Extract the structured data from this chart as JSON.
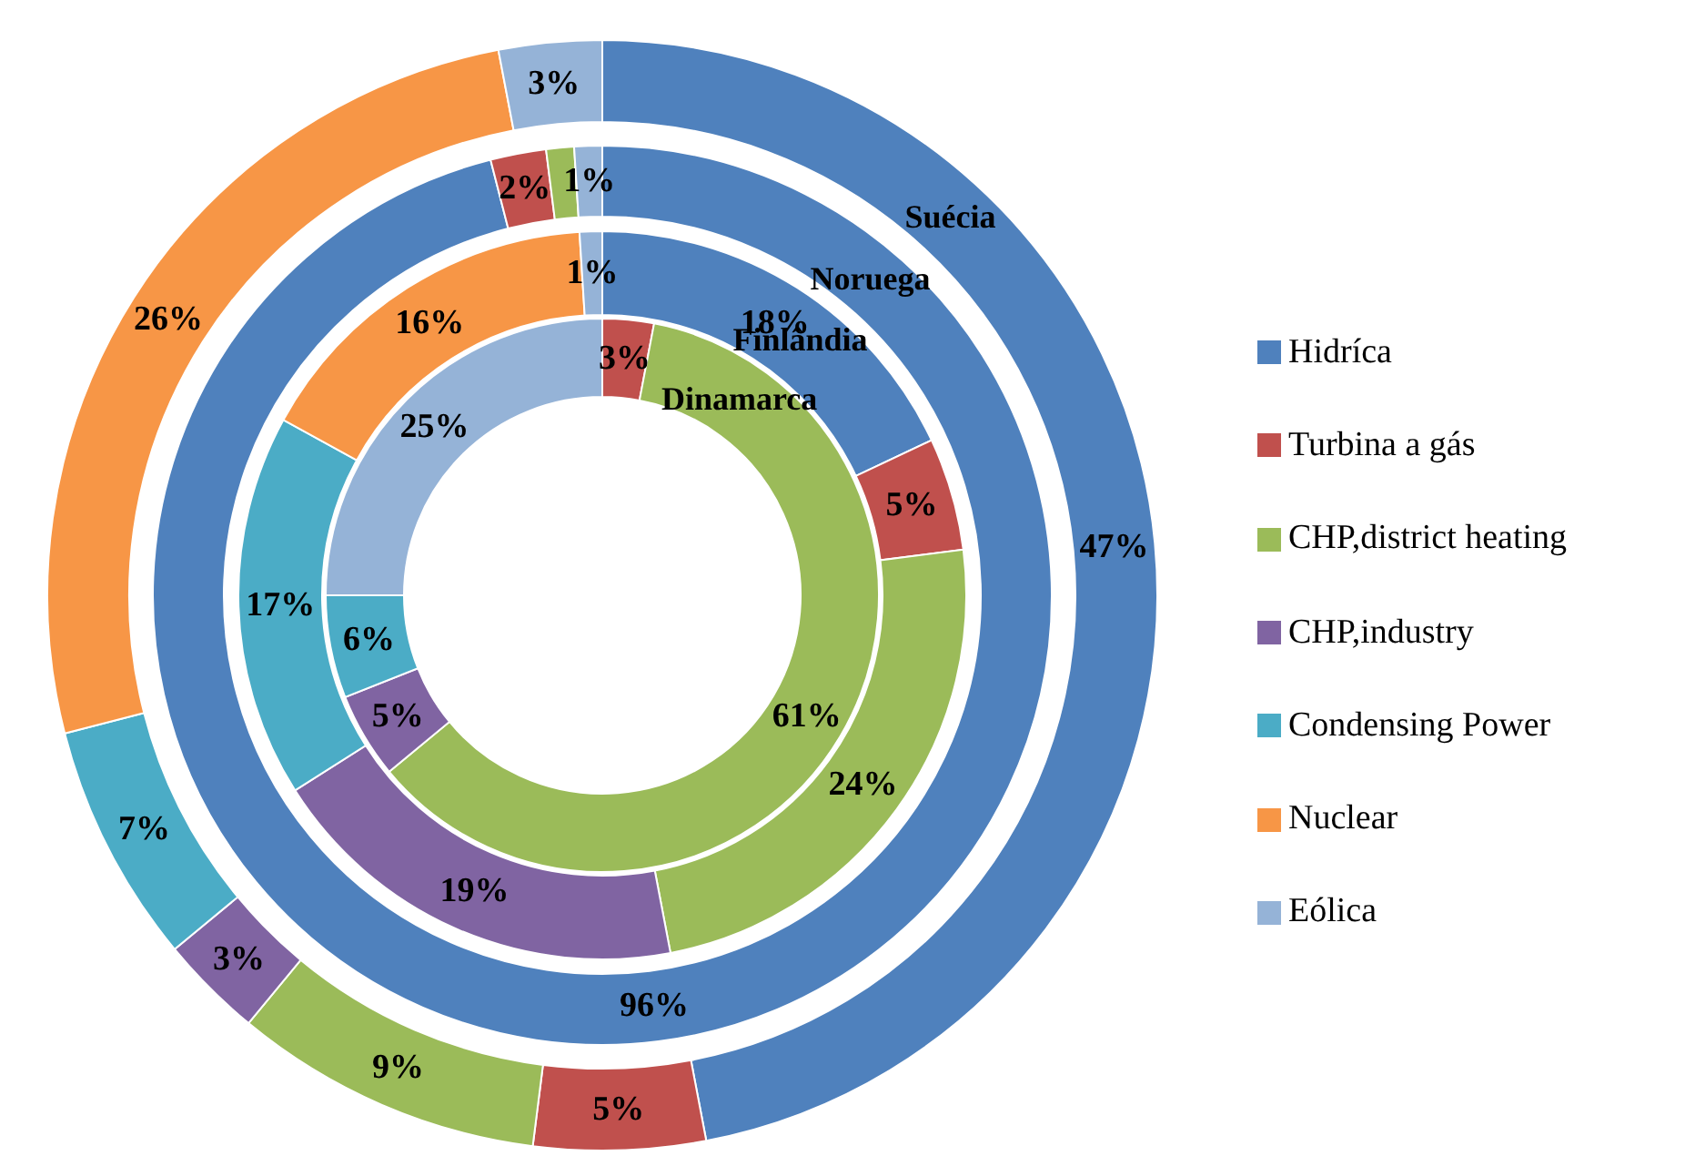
{
  "chart_data": [
    {
      "type": "donut",
      "categories": [
        "Hidríca",
        "Turbina a gás",
        "CHP,district heating",
        "CHP,industry",
        "Condensing Power",
        "Nuclear",
        "Eólica"
      ],
      "colors": [
        "#4f81bd",
        "#c0504d",
        "#9bbb59",
        "#8064a2",
        "#4bacc6",
        "#f79646",
        "#95b3d7"
      ],
      "series": [
        {
          "name": "Suécia",
          "values": [
            47,
            5,
            9,
            3,
            7,
            26,
            3
          ],
          "value_labels": [
            "47%",
            "5%",
            "9%",
            "3%",
            "7%",
            "26%",
            "3%"
          ]
        }
      ],
      "legend": "right"
    },
    {
      "type": "donut",
      "categories": [
        null,
        null,
        null,
        null
      ],
      "colors": [
        "#4f81bd",
        "#c0504d",
        "#9bbb59",
        "#95b3d7"
      ],
      "series": [
        {
          "name": "Noruega",
          "values": [
            96,
            2,
            1,
            1
          ],
          "value_labels": [
            "96%",
            "2%",
            null,
            "1%"
          ]
        }
      ]
    },
    {
      "type": "donut",
      "categories": [
        null,
        null,
        null,
        null,
        null,
        null,
        null
      ],
      "colors": [
        "#4f81bd",
        "#c0504d",
        "#9bbb59",
        "#8064a2",
        "#4bacc6",
        "#f79646",
        "#95b3d7"
      ],
      "series": [
        {
          "name": "Finlândia",
          "values": [
            18,
            5,
            24,
            19,
            17,
            16,
            1
          ],
          "value_labels": [
            "18%",
            "5%",
            "24%",
            "19%",
            "17%",
            "16%",
            "1%"
          ]
        }
      ]
    },
    {
      "type": "donut",
      "categories": [
        null,
        null,
        null,
        null,
        null
      ],
      "colors": [
        "#c0504d",
        "#9bbb59",
        "#8064a2",
        "#4bacc6",
        "#95b3d7"
      ],
      "series": [
        {
          "name": "Dinamarca",
          "values": [
            3,
            61,
            5,
            6,
            25
          ],
          "value_labels": [
            "3%",
            "61%",
            "5%",
            "6%",
            "25%"
          ]
        }
      ]
    }
  ]
}
